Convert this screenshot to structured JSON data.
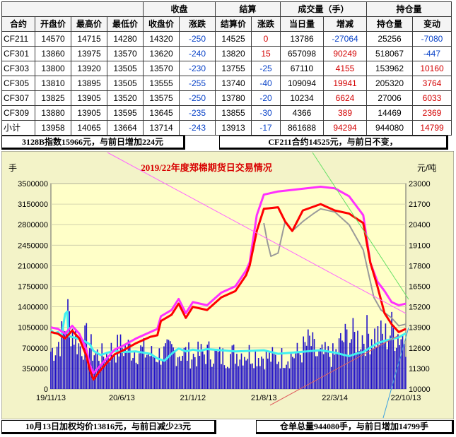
{
  "table": {
    "group_headers": [
      "收盘",
      "结算",
      "成交量（手）",
      "持仓量"
    ],
    "headers": [
      "合约",
      "开盘价",
      "最高价",
      "最低价",
      "收盘价",
      "涨跌",
      "结算价",
      "涨跌",
      "当日量",
      "增减",
      "持仓量",
      "变动"
    ],
    "rows": [
      [
        "CF211",
        "14570",
        "14715",
        "14280",
        "14320",
        "-250",
        "14525",
        "0",
        "13786",
        "-27064",
        "25256",
        "-7080"
      ],
      [
        "CF301",
        "13860",
        "13975",
        "13570",
        "13620",
        "-240",
        "13820",
        "15",
        "657098",
        "90249",
        "518067",
        "-447"
      ],
      [
        "CF303",
        "13800",
        "13920",
        "13505",
        "13570",
        "-230",
        "13755",
        "-25",
        "67110",
        "4155",
        "153962",
        "10160"
      ],
      [
        "CF305",
        "13810",
        "13895",
        "13505",
        "13555",
        "-255",
        "13740",
        "-40",
        "109094",
        "19941",
        "205320",
        "3764"
      ],
      [
        "CF307",
        "13825",
        "13905",
        "13520",
        "13575",
        "-250",
        "13780",
        "-20",
        "10234",
        "6624",
        "27006",
        "6033"
      ],
      [
        "CF309",
        "13880",
        "13905",
        "13595",
        "13645",
        "-235",
        "13855",
        "-30",
        "4366",
        "389",
        "14469",
        "2369"
      ],
      [
        "小计",
        "13958",
        "14065",
        "13664",
        "13714",
        "-243",
        "13913",
        "-17",
        "861688",
        "94294",
        "944080",
        "14799"
      ]
    ]
  },
  "banners": {
    "index_note": "3128B指数15966元，与前日增加224元",
    "contract_note": "CF211合约14525元，与前日不变，",
    "weighted_note": "10月13日加权均价13816元，与前日减少23元",
    "warehouse_note": "仓单总量944080手，与前日增加14799手"
  },
  "chart_data": {
    "type": "line",
    "title": "2019/22年度郑棉期货日交易情况",
    "ylabel_left": "手",
    "ylabel_right": "元/吨",
    "xlabel": "",
    "ylim_left": [
      0,
      3500000
    ],
    "yticks_left": [
      "0",
      "350000",
      "700000",
      "1050000",
      "1400000",
      "1750000",
      "2100000",
      "2450000",
      "2800000",
      "3150000",
      "3500000"
    ],
    "ylim_right": [
      10000,
      23000
    ],
    "yticks_right": [
      "10000",
      "11300",
      "12600",
      "13900",
      "15200",
      "16500",
      "17800",
      "19100",
      "20400",
      "21700",
      "23000"
    ],
    "x_ticks": [
      "19/11/13",
      "20/6/13",
      "21/1/12",
      "21/8/13",
      "22/3/14",
      "22/10/13"
    ],
    "grid": true,
    "colors": {
      "background": "#ffffc8",
      "frame": "#f3f3c8",
      "volume": "#1f10c8",
      "open_interest": "#40f0f0",
      "price_main": "#ff0000",
      "price_high": "#ff30ff",
      "price_alt": "#9a9a9a",
      "title": "#d80000"
    },
    "series": [
      {
        "name": "volume",
        "kind": "bar",
        "axis": "left",
        "points": [
          [
            0,
            640000
          ],
          [
            8,
            740000
          ],
          [
            16,
            900000
          ],
          [
            24,
            1250000
          ],
          [
            32,
            980000
          ],
          [
            40,
            720000
          ],
          [
            50,
            820000
          ],
          [
            60,
            620000
          ],
          [
            72,
            560000
          ],
          [
            86,
            650000
          ],
          [
            100,
            720000
          ],
          [
            115,
            680000
          ],
          [
            130,
            640000
          ],
          [
            145,
            560000
          ],
          [
            160,
            600000
          ],
          [
            170,
            640000
          ],
          [
            185,
            620000
          ],
          [
            200,
            560000
          ],
          [
            215,
            600000
          ],
          [
            225,
            620000
          ],
          [
            240,
            540000
          ],
          [
            260,
            600000
          ],
          [
            275,
            620000
          ],
          [
            290,
            580000
          ],
          [
            305,
            540000
          ],
          [
            320,
            520000
          ],
          [
            335,
            560000
          ],
          [
            350,
            600000
          ],
          [
            365,
            800000
          ],
          [
            375,
            560000
          ],
          [
            390,
            580000
          ],
          [
            400,
            560000
          ],
          [
            410,
            820000
          ],
          [
            420,
            880000
          ],
          [
            430,
            860000
          ],
          [
            440,
            900000
          ],
          [
            450,
            940000
          ],
          [
            460,
            900000
          ],
          [
            470,
            860000
          ],
          [
            480,
            1000000
          ],
          [
            490,
            940000
          ],
          [
            500,
            880000
          ]
        ]
      },
      {
        "name": "open_interest",
        "kind": "line",
        "axis": "left",
        "points": [
          [
            0,
            1000000
          ],
          [
            5,
            950000
          ],
          [
            10,
            970000
          ],
          [
            15,
            900000
          ],
          [
            20,
            1280000
          ],
          [
            23,
            1320000
          ],
          [
            25,
            900000
          ],
          [
            35,
            870000
          ],
          [
            45,
            830000
          ],
          [
            55,
            760000
          ],
          [
            60,
            650000
          ],
          [
            70,
            580000
          ],
          [
            80,
            620000
          ],
          [
            90,
            650000
          ],
          [
            100,
            630000
          ],
          [
            120,
            640000
          ],
          [
            140,
            600000
          ],
          [
            150,
            520000
          ],
          [
            160,
            480000
          ],
          [
            170,
            600000
          ],
          [
            180,
            690000
          ],
          [
            190,
            640000
          ],
          [
            200,
            670000
          ],
          [
            210,
            650000
          ],
          [
            220,
            680000
          ],
          [
            240,
            660000
          ],
          [
            260,
            640000
          ],
          [
            280,
            650000
          ],
          [
            300,
            660000
          ],
          [
            320,
            600000
          ],
          [
            340,
            620000
          ],
          [
            360,
            640000
          ],
          [
            380,
            660000
          ],
          [
            400,
            620000
          ],
          [
            420,
            560000
          ],
          [
            430,
            600000
          ],
          [
            440,
            630000
          ],
          [
            460,
            780000
          ],
          [
            470,
            820000
          ],
          [
            490,
            880000
          ],
          [
            500,
            950000
          ]
        ]
      },
      {
        "name": "price_main",
        "kind": "line",
        "axis": "right",
        "points": [
          [
            0,
            13600
          ],
          [
            10,
            13500
          ],
          [
            20,
            13200
          ],
          [
            30,
            13700
          ],
          [
            40,
            13200
          ],
          [
            50,
            12100
          ],
          [
            55,
            11200
          ],
          [
            60,
            10600
          ],
          [
            70,
            11200
          ],
          [
            80,
            11700
          ],
          [
            90,
            12200
          ],
          [
            100,
            12400
          ],
          [
            120,
            12900
          ],
          [
            140,
            13300
          ],
          [
            150,
            13400
          ],
          [
            155,
            14300
          ],
          [
            170,
            14700
          ],
          [
            180,
            15400
          ],
          [
            190,
            14500
          ],
          [
            200,
            15200
          ],
          [
            220,
            15000
          ],
          [
            240,
            15800
          ],
          [
            260,
            16200
          ],
          [
            275,
            17200
          ],
          [
            280,
            17800
          ],
          [
            290,
            20000
          ],
          [
            300,
            21400
          ],
          [
            320,
            21500
          ],
          [
            330,
            20600
          ],
          [
            340,
            20000
          ],
          [
            355,
            21300
          ],
          [
            380,
            21700
          ],
          [
            400,
            21300
          ],
          [
            420,
            21100
          ],
          [
            440,
            20500
          ],
          [
            450,
            18000
          ],
          [
            460,
            16500
          ],
          [
            470,
            14800
          ],
          [
            480,
            14100
          ],
          [
            490,
            13600
          ],
          [
            500,
            13800
          ]
        ]
      },
      {
        "name": "price_high",
        "kind": "line",
        "axis": "right",
        "points": [
          [
            0,
            13900
          ],
          [
            10,
            13800
          ],
          [
            20,
            13500
          ],
          [
            30,
            14000
          ],
          [
            40,
            13500
          ],
          [
            50,
            12500
          ],
          [
            55,
            11500
          ],
          [
            60,
            11000
          ],
          [
            70,
            11500
          ],
          [
            80,
            12000
          ],
          [
            90,
            12500
          ],
          [
            100,
            12700
          ],
          [
            120,
            13200
          ],
          [
            140,
            13600
          ],
          [
            150,
            13800
          ],
          [
            155,
            14600
          ],
          [
            170,
            15000
          ],
          [
            180,
            15700
          ],
          [
            190,
            14800
          ],
          [
            200,
            15500
          ],
          [
            220,
            15300
          ],
          [
            240,
            16100
          ],
          [
            260,
            16500
          ],
          [
            275,
            17500
          ],
          [
            280,
            18000
          ],
          [
            290,
            21000
          ],
          [
            300,
            22300
          ],
          [
            320,
            22500
          ],
          [
            340,
            22600
          ],
          [
            360,
            22700
          ],
          [
            380,
            22800
          ],
          [
            400,
            22700
          ],
          [
            420,
            22200
          ],
          [
            440,
            21000
          ],
          [
            450,
            18000
          ],
          [
            460,
            16800
          ],
          [
            470,
            16200
          ],
          [
            480,
            15500
          ],
          [
            490,
            15300
          ],
          [
            500,
            15400
          ]
        ]
      },
      {
        "name": "price_alt",
        "kind": "line",
        "axis": "right",
        "points": [
          [
            300,
            20500
          ],
          [
            305,
            19300
          ],
          [
            310,
            18400
          ],
          [
            320,
            18600
          ],
          [
            330,
            20600
          ],
          [
            340,
            20000
          ],
          [
            355,
            20600
          ],
          [
            370,
            21100
          ],
          [
            380,
            21400
          ],
          [
            400,
            21200
          ],
          [
            420,
            20400
          ],
          [
            440,
            18800
          ],
          [
            455,
            15800
          ],
          [
            465,
            15000
          ],
          [
            480,
            14500
          ],
          [
            490,
            14000
          ],
          [
            500,
            14100
          ]
        ]
      }
    ]
  }
}
